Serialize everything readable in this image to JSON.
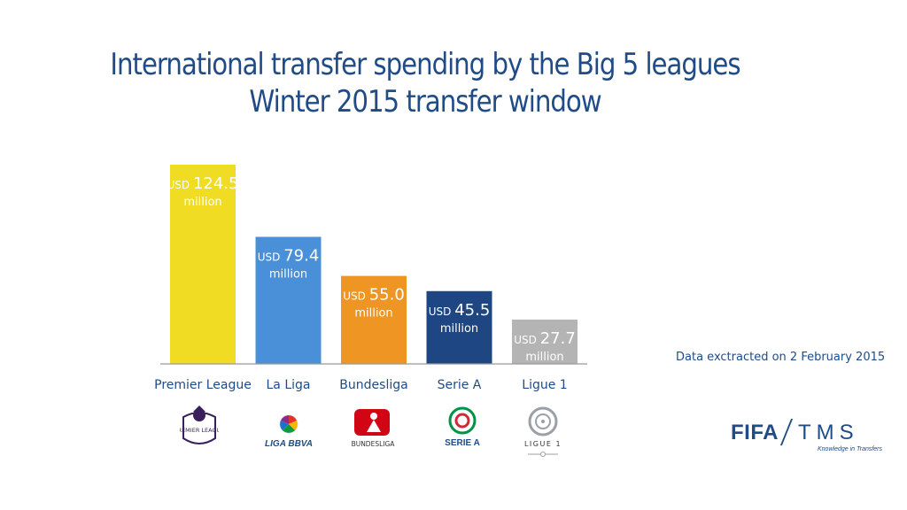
{
  "chart_data": {
    "type": "bar",
    "title": "International transfer spending by the Big 5 leagues",
    "subtitle": "Winter 2015 transfer window",
    "categories": [
      "Premier League",
      "La Liga",
      "Bundesliga",
      "Serie A",
      "Ligue 1"
    ],
    "values": [
      124.5,
      79.4,
      55.0,
      45.5,
      27.7
    ],
    "value_labels": [
      "124.5",
      "79.4",
      "55.0",
      "45.5",
      "27.7"
    ],
    "value_prefix": "USD",
    "value_suffix": "million",
    "bar_colors": [
      "#f0dc23",
      "#4a90d9",
      "#ef9523",
      "#1d4682",
      "#b4b4b4"
    ],
    "ylim": [
      0,
      124.5
    ],
    "grid": false,
    "legend": "none"
  },
  "note": "Data exctracted on 2 February 2015",
  "logos": {
    "premier_league": "PREMIER LEAGUE",
    "la_liga": "LIGA BBVA",
    "bundesliga": "BUNDESLIGA",
    "serie_a": "SERIE A",
    "ligue_1": "LIGUE 1",
    "fifa_tms": {
      "fifa": "FIFA",
      "tms": "TMS",
      "tagline": "Knowledge in Transfers"
    }
  },
  "colors": {
    "accent": "#1f4b86",
    "baseline": "#999999"
  }
}
